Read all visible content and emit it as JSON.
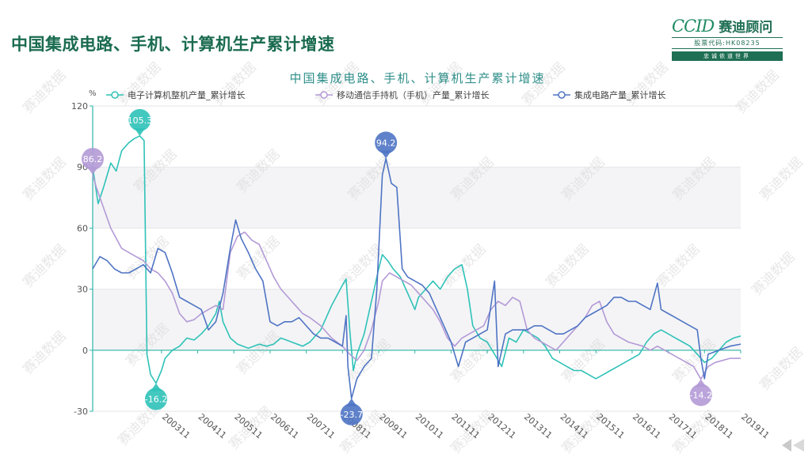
{
  "page": {
    "title": "中国集成电路、手机、计算机生产累计增速"
  },
  "logo": {
    "brand_latin": "CCID",
    "brand_cn": "赛迪顾问",
    "stock_code": "股票代码:HK08235",
    "slogan": "忠诚依道世界"
  },
  "watermark": "赛迪数据",
  "colors": {
    "computer": "#2fc2b8",
    "phone": "#b39ad6",
    "ic": "#4f74c4",
    "title_green": "#1a6b4f",
    "axis": "#2fb5a8"
  },
  "chart_data": {
    "type": "line",
    "title": "中国集成电路、手机、计算机生产累计增速",
    "ylabel": "%",
    "ylim": [
      -30,
      120
    ],
    "yticks": [
      -30,
      0,
      30,
      60,
      90,
      120
    ],
    "xlabels": [
      "200311",
      "200411",
      "200511",
      "200611",
      "200711",
      "200811",
      "200911",
      "201011",
      "201111",
      "201211",
      "201311",
      "201411",
      "201511",
      "201611",
      "201711",
      "201811",
      "201911"
    ],
    "legend_position": "top",
    "series": [
      {
        "name": "电子计算机整机产量_累计增长",
        "color_key": "computer",
        "points": [
          [
            2002.0,
            90
          ],
          [
            2002.15,
            72
          ],
          [
            2002.3,
            80
          ],
          [
            2002.5,
            92
          ],
          [
            2002.65,
            88
          ],
          [
            2002.8,
            98
          ],
          [
            2003.0,
            102
          ],
          [
            2003.15,
            104
          ],
          [
            2003.3,
            105.3
          ],
          [
            2003.42,
            103
          ],
          [
            2003.5,
            -2
          ],
          [
            2003.6,
            -12
          ],
          [
            2003.75,
            -16.2
          ],
          [
            2003.9,
            -10
          ],
          [
            2004.0,
            -4
          ],
          [
            2004.2,
            0
          ],
          [
            2004.4,
            2
          ],
          [
            2004.6,
            6
          ],
          [
            2004.8,
            5
          ],
          [
            2005.0,
            8
          ],
          [
            2005.2,
            12
          ],
          [
            2005.4,
            18
          ],
          [
            2005.5,
            24
          ],
          [
            2005.6,
            14
          ],
          [
            2005.8,
            6
          ],
          [
            2006.0,
            3
          ],
          [
            2006.3,
            1
          ],
          [
            2006.6,
            3
          ],
          [
            2006.8,
            2
          ],
          [
            2007.0,
            3
          ],
          [
            2007.2,
            6
          ],
          [
            2007.5,
            4
          ],
          [
            2007.8,
            2
          ],
          [
            2008.0,
            4
          ],
          [
            2008.3,
            10
          ],
          [
            2008.6,
            22
          ],
          [
            2008.9,
            32
          ],
          [
            2009.0,
            35
          ],
          [
            2009.1,
            10
          ],
          [
            2009.2,
            -10
          ],
          [
            2009.3,
            -2
          ],
          [
            2009.5,
            8
          ],
          [
            2009.7,
            24
          ],
          [
            2009.9,
            40
          ],
          [
            2010.0,
            47
          ],
          [
            2010.15,
            44
          ],
          [
            2010.3,
            40
          ],
          [
            2010.5,
            36
          ],
          [
            2010.7,
            28
          ],
          [
            2010.9,
            20
          ],
          [
            2011.0,
            26
          ],
          [
            2011.2,
            30
          ],
          [
            2011.4,
            34
          ],
          [
            2011.6,
            30
          ],
          [
            2011.8,
            36
          ],
          [
            2012.0,
            40
          ],
          [
            2012.2,
            42
          ],
          [
            2012.35,
            30
          ],
          [
            2012.5,
            12
          ],
          [
            2012.7,
            6
          ],
          [
            2012.9,
            4
          ],
          [
            2013.1,
            -2
          ],
          [
            2013.3,
            -8
          ],
          [
            2013.5,
            6
          ],
          [
            2013.7,
            4
          ],
          [
            2013.9,
            10
          ],
          [
            2014.1,
            8
          ],
          [
            2014.3,
            6
          ],
          [
            2014.5,
            2
          ],
          [
            2014.7,
            -4
          ],
          [
            2014.9,
            -6
          ],
          [
            2015.1,
            -8
          ],
          [
            2015.3,
            -10
          ],
          [
            2015.5,
            -10
          ],
          [
            2015.7,
            -12
          ],
          [
            2015.9,
            -14
          ],
          [
            2016.1,
            -12
          ],
          [
            2016.3,
            -10
          ],
          [
            2016.5,
            -8
          ],
          [
            2016.7,
            -6
          ],
          [
            2016.9,
            -4
          ],
          [
            2017.1,
            -2
          ],
          [
            2017.3,
            4
          ],
          [
            2017.5,
            8
          ],
          [
            2017.7,
            10
          ],
          [
            2017.9,
            8
          ],
          [
            2018.1,
            6
          ],
          [
            2018.3,
            4
          ],
          [
            2018.5,
            2
          ],
          [
            2018.7,
            -2
          ],
          [
            2018.9,
            -6
          ],
          [
            2019.1,
            -4
          ],
          [
            2019.3,
            0
          ],
          [
            2019.5,
            4
          ],
          [
            2019.7,
            6
          ],
          [
            2019.9,
            7
          ]
        ]
      },
      {
        "name": "移动通信手持机（手机）产量_累计增长",
        "color_key": "phone",
        "points": [
          [
            2002.0,
            86.2
          ],
          [
            2002.1,
            80
          ],
          [
            2002.3,
            70
          ],
          [
            2002.5,
            60
          ],
          [
            2002.8,
            50
          ],
          [
            2003.1,
            47
          ],
          [
            2003.4,
            44
          ],
          [
            2003.6,
            40
          ],
          [
            2003.8,
            38
          ],
          [
            2004.0,
            34
          ],
          [
            2004.2,
            28
          ],
          [
            2004.4,
            18
          ],
          [
            2004.6,
            14
          ],
          [
            2004.8,
            15
          ],
          [
            2005.0,
            18
          ],
          [
            2005.2,
            20
          ],
          [
            2005.4,
            22
          ],
          [
            2005.6,
            20
          ],
          [
            2005.8,
            48
          ],
          [
            2006.0,
            56
          ],
          [
            2006.2,
            58
          ],
          [
            2006.4,
            54
          ],
          [
            2006.6,
            52
          ],
          [
            2006.8,
            44
          ],
          [
            2007.0,
            36
          ],
          [
            2007.2,
            30
          ],
          [
            2007.4,
            26
          ],
          [
            2007.6,
            22
          ],
          [
            2007.8,
            18
          ],
          [
            2008.0,
            16
          ],
          [
            2008.3,
            12
          ],
          [
            2008.6,
            6
          ],
          [
            2008.9,
            2
          ],
          [
            2009.1,
            -2
          ],
          [
            2009.3,
            -5
          ],
          [
            2009.5,
            0
          ],
          [
            2009.7,
            10
          ],
          [
            2009.9,
            24
          ],
          [
            2010.0,
            34
          ],
          [
            2010.2,
            38
          ],
          [
            2010.4,
            36
          ],
          [
            2010.6,
            34
          ],
          [
            2010.8,
            32
          ],
          [
            2011.0,
            28
          ],
          [
            2011.2,
            24
          ],
          [
            2011.4,
            20
          ],
          [
            2011.6,
            14
          ],
          [
            2011.8,
            6
          ],
          [
            2012.0,
            2
          ],
          [
            2012.2,
            6
          ],
          [
            2012.4,
            8
          ],
          [
            2012.6,
            10
          ],
          [
            2012.8,
            12
          ],
          [
            2013.0,
            20
          ],
          [
            2013.2,
            24
          ],
          [
            2013.4,
            22
          ],
          [
            2013.6,
            26
          ],
          [
            2013.8,
            24
          ],
          [
            2014.0,
            10
          ],
          [
            2014.2,
            6
          ],
          [
            2014.4,
            4
          ],
          [
            2014.6,
            2
          ],
          [
            2014.8,
            0
          ],
          [
            2015.0,
            4
          ],
          [
            2015.2,
            8
          ],
          [
            2015.4,
            12
          ],
          [
            2015.6,
            16
          ],
          [
            2015.8,
            22
          ],
          [
            2016.0,
            24
          ],
          [
            2016.2,
            14
          ],
          [
            2016.4,
            8
          ],
          [
            2016.6,
            6
          ],
          [
            2016.8,
            4
          ],
          [
            2017.0,
            3
          ],
          [
            2017.2,
            2
          ],
          [
            2017.4,
            0
          ],
          [
            2017.6,
            2
          ],
          [
            2017.8,
            0
          ],
          [
            2018.0,
            -2
          ],
          [
            2018.2,
            -4
          ],
          [
            2018.4,
            -6
          ],
          [
            2018.6,
            -8
          ],
          [
            2018.8,
            -14.2
          ],
          [
            2019.0,
            -8
          ],
          [
            2019.2,
            -6
          ],
          [
            2019.4,
            -5
          ],
          [
            2019.6,
            -4
          ],
          [
            2019.9,
            -4
          ]
        ]
      },
      {
        "name": "集成电路产量_累计增长",
        "color_key": "ic",
        "points": [
          [
            2002.0,
            40
          ],
          [
            2002.2,
            46
          ],
          [
            2002.4,
            44
          ],
          [
            2002.6,
            40
          ],
          [
            2002.8,
            38
          ],
          [
            2003.0,
            38
          ],
          [
            2003.2,
            40
          ],
          [
            2003.4,
            42
          ],
          [
            2003.6,
            38
          ],
          [
            2003.8,
            50
          ],
          [
            2004.0,
            48
          ],
          [
            2004.2,
            38
          ],
          [
            2004.4,
            26
          ],
          [
            2004.6,
            24
          ],
          [
            2004.8,
            22
          ],
          [
            2005.0,
            20
          ],
          [
            2005.2,
            10
          ],
          [
            2005.4,
            14
          ],
          [
            2005.6,
            28
          ],
          [
            2005.8,
            50
          ],
          [
            2005.95,
            64
          ],
          [
            2006.1,
            55
          ],
          [
            2006.3,
            48
          ],
          [
            2006.5,
            40
          ],
          [
            2006.7,
            34
          ],
          [
            2006.9,
            14
          ],
          [
            2007.1,
            12
          ],
          [
            2007.3,
            14
          ],
          [
            2007.5,
            14
          ],
          [
            2007.7,
            16
          ],
          [
            2007.9,
            12
          ],
          [
            2008.1,
            8
          ],
          [
            2008.3,
            6
          ],
          [
            2008.5,
            6
          ],
          [
            2008.7,
            4
          ],
          [
            2008.9,
            2
          ],
          [
            2009.0,
            17
          ],
          [
            2009.05,
            -8
          ],
          [
            2009.15,
            -23.7
          ],
          [
            2009.3,
            -14
          ],
          [
            2009.5,
            -8
          ],
          [
            2009.7,
            -4
          ],
          [
            2009.85,
            30
          ],
          [
            2010.0,
            86
          ],
          [
            2010.1,
            94.2
          ],
          [
            2010.25,
            82
          ],
          [
            2010.4,
            80
          ],
          [
            2010.55,
            40
          ],
          [
            2010.7,
            36
          ],
          [
            2010.9,
            34
          ],
          [
            2011.1,
            32
          ],
          [
            2011.3,
            28
          ],
          [
            2011.5,
            20
          ],
          [
            2011.7,
            12
          ],
          [
            2011.9,
            4
          ],
          [
            2012.1,
            -8
          ],
          [
            2012.3,
            4
          ],
          [
            2012.5,
            6
          ],
          [
            2012.7,
            8
          ],
          [
            2012.9,
            10
          ],
          [
            2013.1,
            34
          ],
          [
            2013.2,
            -8
          ],
          [
            2013.4,
            8
          ],
          [
            2013.6,
            10
          ],
          [
            2013.8,
            10
          ],
          [
            2014.0,
            10
          ],
          [
            2014.2,
            12
          ],
          [
            2014.4,
            12
          ],
          [
            2014.6,
            10
          ],
          [
            2014.8,
            8
          ],
          [
            2015.0,
            8
          ],
          [
            2015.2,
            10
          ],
          [
            2015.4,
            12
          ],
          [
            2015.6,
            16
          ],
          [
            2015.8,
            18
          ],
          [
            2016.0,
            20
          ],
          [
            2016.2,
            22
          ],
          [
            2016.4,
            26
          ],
          [
            2016.6,
            26
          ],
          [
            2016.8,
            24
          ],
          [
            2017.0,
            24
          ],
          [
            2017.2,
            22
          ],
          [
            2017.4,
            20
          ],
          [
            2017.6,
            33
          ],
          [
            2017.7,
            20
          ],
          [
            2017.9,
            18
          ],
          [
            2018.1,
            16
          ],
          [
            2018.3,
            14
          ],
          [
            2018.5,
            12
          ],
          [
            2018.7,
            10
          ],
          [
            2018.8,
            -4
          ],
          [
            2018.9,
            -14
          ],
          [
            2019.0,
            -2
          ],
          [
            2019.3,
            0
          ],
          [
            2019.6,
            2
          ],
          [
            2019.9,
            3
          ]
        ]
      }
    ],
    "annotations": [
      {
        "series": "电子计算机整机产量_累计增长",
        "label": "105.3",
        "x": 2003.3,
        "y": 105.3,
        "kind": "max",
        "color_key": "computer"
      },
      {
        "series": "电子计算机整机产量_累计增长",
        "label": "-16.2",
        "x": 2003.75,
        "y": -16.2,
        "kind": "min",
        "color_key": "computer"
      },
      {
        "series": "移动通信手持机（手机）产量_累计增长",
        "label": "86.2",
        "x": 2002.0,
        "y": 86.2,
        "kind": "max",
        "color_key": "phone"
      },
      {
        "series": "移动通信手持机（手机）产量_累计增长",
        "label": "-14.2",
        "x": 2018.8,
        "y": -14.2,
        "kind": "min",
        "color_key": "phone"
      },
      {
        "series": "集成电路产量_累计增长",
        "label": "94.2",
        "x": 2010.1,
        "y": 94.2,
        "kind": "max",
        "color_key": "ic"
      },
      {
        "series": "集成电路产量_累计增长",
        "label": "-23.7",
        "x": 2009.15,
        "y": -23.7,
        "kind": "min",
        "color_key": "ic"
      }
    ]
  }
}
